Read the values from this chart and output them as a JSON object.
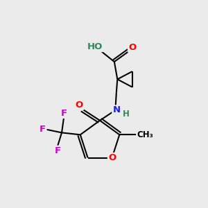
{
  "bg_color": "#ebebeb",
  "atom_colors": {
    "C": "#000000",
    "O": "#ff0000",
    "N": "#1a1aff",
    "F": "#cc00cc",
    "H": "#2e8b57"
  }
}
